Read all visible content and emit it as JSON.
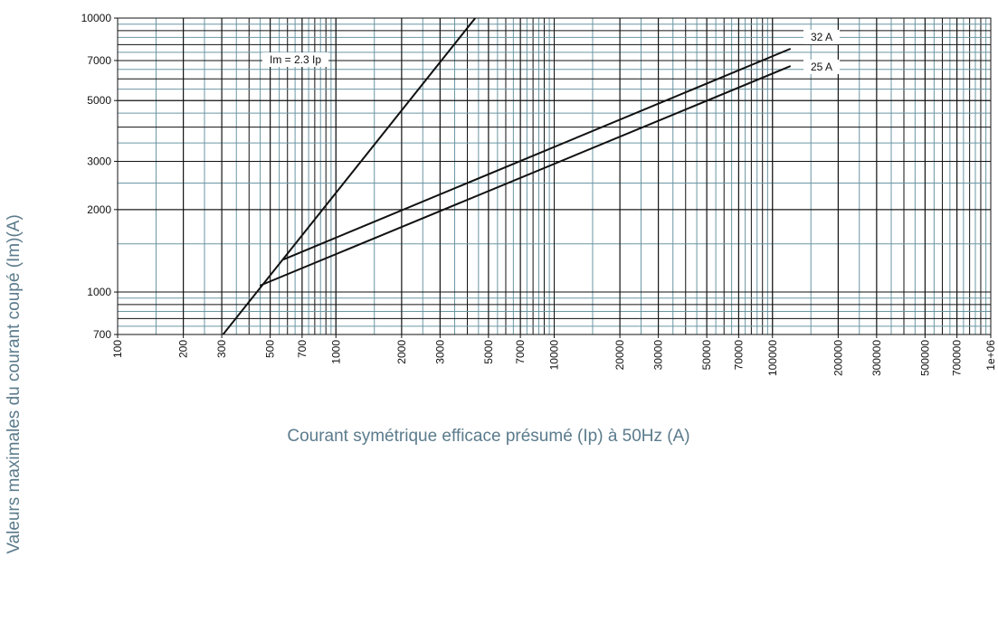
{
  "chart_data": {
    "type": "line",
    "x_label": "Courant symétrique efficace présumé (Ip) à 50Hz (A)",
    "y_label": "Valeurs maximales du courant coupé (Im)(A)",
    "log_x": true,
    "log_y": true,
    "grid": true,
    "xlim": [
      100,
      1000000
    ],
    "ylim": [
      700,
      10000
    ],
    "xticks": [
      100,
      200,
      300,
      500,
      700,
      1000,
      2000,
      3000,
      5000,
      7000,
      10000,
      20000,
      30000,
      50000,
      70000,
      100000,
      200000,
      300000,
      500000,
      700000,
      {
        "value": 1000000,
        "label": "1e+06"
      }
    ],
    "yticks": [
      700,
      1000,
      2000,
      3000,
      5000,
      7000,
      10000
    ],
    "series": [
      {
        "name": "Im = 2.3 Ip",
        "color": "#111111",
        "x": [
          304,
          4348
        ],
        "values": [
          700,
          10000
        ]
      },
      {
        "name": "32 A",
        "color": "#111111",
        "x": [
          575,
          121000
        ],
        "values": [
          1315,
          7730
        ]
      },
      {
        "name": "25 A",
        "color": "#111111",
        "x": [
          448,
          121000
        ],
        "values": [
          1055,
          6680
        ]
      }
    ]
  }
}
